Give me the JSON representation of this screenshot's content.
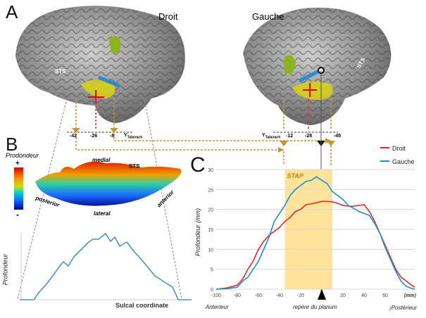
{
  "panels": {
    "a": "A",
    "b": "B",
    "c": "C"
  },
  "panel_a": {
    "hemi_right": "Droit",
    "hemi_left": "Gauche",
    "sts_label": "STS",
    "left_ticks": [
      "-42",
      "-26",
      "-8"
    ],
    "right_ticks": [
      "-12",
      "-28",
      "-45"
    ],
    "axis_label": "Y",
    "axis_sub": "Talairach"
  },
  "panel_b": {
    "depth_title": "Prodondeur",
    "scale_plus": "+",
    "scale_minus": "-",
    "medial": "medial",
    "lateral": "lateral",
    "posterior": "posterior",
    "anterior": "anterior",
    "sts": "STS",
    "profile_ylabel": "Profondeur",
    "profile_xlabel": "Sulcal coordinate"
  },
  "colors": {
    "droit": "#e8262a",
    "gauche": "#1a8fd6",
    "stap": "#fde49a",
    "arrow": "#c8962a"
  },
  "chart_data": {
    "type": "line",
    "ylabel": "Profondeur (mm)",
    "xlabel": "(mm)",
    "x_left_label": "Anterieur",
    "x_center_label": "repère du planum",
    "x_right_label": "¡Postérieur",
    "xlim": [
      -100,
      88
    ],
    "ylim": [
      0,
      30
    ],
    "xticks": [
      -100,
      -80,
      -60,
      -40,
      -20,
      20,
      40,
      60
    ],
    "yticks": [
      0,
      5,
      10,
      15,
      20,
      25,
      30
    ],
    "grid": true,
    "legend": "top-right",
    "region": {
      "label": "STAP",
      "from": -35,
      "to": 10
    },
    "marker_x": 0,
    "series": [
      {
        "name": "Droit",
        "x": [
          -100,
          -90,
          -80,
          -75,
          -70,
          -65,
          -60,
          -55,
          -50,
          -45,
          -40,
          -35,
          -30,
          -25,
          -20,
          -15,
          -10,
          -5,
          0,
          5,
          10,
          15,
          20,
          25,
          30,
          35,
          40,
          45,
          50,
          55,
          60,
          65,
          70,
          75,
          80,
          85,
          88
        ],
        "y": [
          0,
          0.3,
          1,
          2.5,
          5,
          7,
          10,
          12,
          13.5,
          14.5,
          15.5,
          17,
          18,
          19.5,
          20,
          21.2,
          21.4,
          21.7,
          22,
          22,
          21.9,
          21.5,
          21,
          20.8,
          20.8,
          21,
          21.2,
          19.5,
          17,
          14,
          11,
          8,
          5,
          3,
          2,
          1,
          0.5
        ]
      },
      {
        "name": "Gauche",
        "x": [
          -100,
          -90,
          -80,
          -75,
          -70,
          -65,
          -60,
          -55,
          -50,
          -45,
          -40,
          -35,
          -30,
          -25,
          -20,
          -15,
          -10,
          -5,
          0,
          5,
          10,
          15,
          20,
          25,
          30,
          35,
          40,
          45,
          50,
          55,
          60,
          65,
          70,
          75,
          80,
          85,
          88
        ],
        "y": [
          0,
          0.1,
          0.5,
          2,
          3,
          5,
          7,
          10,
          13,
          17,
          19,
          21,
          23.5,
          25,
          26,
          27,
          27.3,
          28.2,
          27.3,
          26.5,
          24.5,
          23.5,
          22.5,
          21,
          20.3,
          19.5,
          19,
          18.5,
          16.5,
          14,
          10.5,
          7.5,
          4.5,
          2,
          0.7,
          0.2,
          0
        ]
      }
    ]
  }
}
